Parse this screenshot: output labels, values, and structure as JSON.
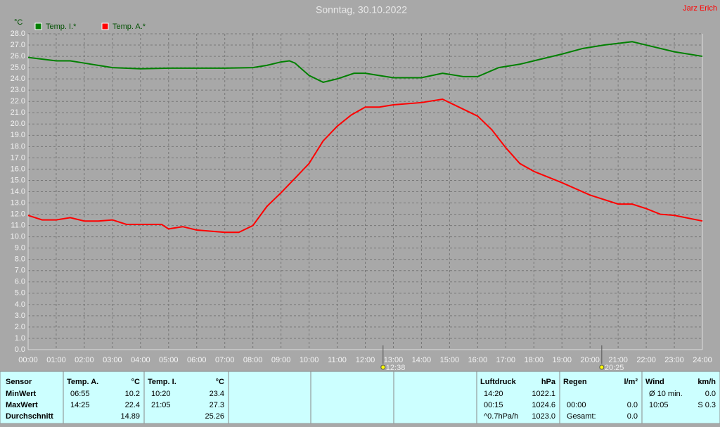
{
  "chart_data": {
    "type": "line",
    "title": "Sonntag, 30.10.2022",
    "author": "Jarz Erich",
    "y_label": "°C",
    "xlim": [
      0,
      24
    ],
    "ylim": [
      0,
      28
    ],
    "grid": true,
    "xticks": [
      {
        "value": 0,
        "label": "00:00"
      },
      {
        "value": 1,
        "label": "01:00"
      },
      {
        "value": 2,
        "label": "02:00"
      },
      {
        "value": 3,
        "label": "03:00"
      },
      {
        "value": 4,
        "label": "04:00"
      },
      {
        "value": 5,
        "label": "05:00"
      },
      {
        "value": 6,
        "label": "06:00"
      },
      {
        "value": 7,
        "label": "07:00"
      },
      {
        "value": 8,
        "label": "08:00"
      },
      {
        "value": 9,
        "label": "09:00"
      },
      {
        "value": 10,
        "label": "10:00"
      },
      {
        "value": 11,
        "label": "11:00"
      },
      {
        "value": 12,
        "label": "12:00"
      },
      {
        "value": 13,
        "label": "13:00"
      },
      {
        "value": 14,
        "label": "14:00"
      },
      {
        "value": 15,
        "label": "15:00"
      },
      {
        "value": 16,
        "label": "16:00"
      },
      {
        "value": 17,
        "label": "17:00"
      },
      {
        "value": 18,
        "label": "18:00"
      },
      {
        "value": 19,
        "label": "19:00"
      },
      {
        "value": 20,
        "label": "20:00"
      },
      {
        "value": 21,
        "label": "21:00"
      },
      {
        "value": 22,
        "label": "22:00"
      },
      {
        "value": 23,
        "label": "23:00"
      },
      {
        "value": 24,
        "label": "24:00"
      }
    ],
    "yticks": [
      {
        "value": 0,
        "label": "0.0"
      },
      {
        "value": 1,
        "label": "1.0"
      },
      {
        "value": 2,
        "label": "2.0"
      },
      {
        "value": 3,
        "label": "3.0"
      },
      {
        "value": 4,
        "label": "4.0"
      },
      {
        "value": 5,
        "label": "5.0"
      },
      {
        "value": 6,
        "label": "6.0"
      },
      {
        "value": 7,
        "label": "7.0"
      },
      {
        "value": 8,
        "label": "8.0"
      },
      {
        "value": 9,
        "label": "9.0"
      },
      {
        "value": 10,
        "label": "10.0"
      },
      {
        "value": 11,
        "label": "11.0"
      },
      {
        "value": 12,
        "label": "12.0"
      },
      {
        "value": 13,
        "label": "13.0"
      },
      {
        "value": 14,
        "label": "14.0"
      },
      {
        "value": 15,
        "label": "15.0"
      },
      {
        "value": 16,
        "label": "16.0"
      },
      {
        "value": 17,
        "label": "17.0"
      },
      {
        "value": 18,
        "label": "18.0"
      },
      {
        "value": 19,
        "label": "19.0"
      },
      {
        "value": 20,
        "label": "20.0"
      },
      {
        "value": 21,
        "label": "21.0"
      },
      {
        "value": 22,
        "label": "22.0"
      },
      {
        "value": 23,
        "label": "23.0"
      },
      {
        "value": 24,
        "label": "24.0"
      },
      {
        "value": 25,
        "label": "25.0"
      },
      {
        "value": 26,
        "label": "26.0"
      },
      {
        "value": 27,
        "label": "27.0"
      },
      {
        "value": 28,
        "label": "28.0"
      }
    ],
    "series": [
      {
        "name": "Temp. I.*",
        "color": "#008000",
        "x": [
          0,
          1,
          1.5,
          2,
          3,
          4,
          5,
          6,
          7,
          8,
          8.5,
          9,
          9.3,
          9.5,
          10,
          10.5,
          11,
          11.6,
          12,
          12.5,
          13,
          14,
          14.75,
          15.5,
          16,
          16.75,
          17.5,
          18,
          19,
          19.75,
          20.5,
          21.5,
          22,
          23,
          24
        ],
        "values": [
          25.9,
          25.6,
          25.6,
          25.4,
          25.0,
          24.9,
          24.95,
          24.95,
          24.95,
          25.0,
          25.2,
          25.5,
          25.6,
          25.4,
          24.3,
          23.7,
          24.0,
          24.5,
          24.5,
          24.3,
          24.1,
          24.1,
          24.5,
          24.2,
          24.2,
          25.0,
          25.3,
          25.6,
          26.2,
          26.7,
          27.0,
          27.3,
          27.0,
          26.4,
          26.0
        ]
      },
      {
        "name": "Temp. A.*",
        "color": "#ff0000",
        "x": [
          0,
          0.5,
          1,
          1.5,
          2,
          2.5,
          3,
          3.5,
          4,
          4.75,
          5,
          5.5,
          6,
          7,
          7.5,
          8,
          8.5,
          9,
          9.5,
          10,
          10.5,
          11,
          11.5,
          12,
          12.5,
          13,
          14,
          14.75,
          15.5,
          16,
          16.5,
          17,
          17.5,
          18,
          19,
          20,
          21,
          21.5,
          22,
          22.5,
          23,
          24
        ],
        "values": [
          11.9,
          11.5,
          11.5,
          11.7,
          11.4,
          11.4,
          11.5,
          11.1,
          11.1,
          11.1,
          10.7,
          10.9,
          10.6,
          10.4,
          10.4,
          11.0,
          12.7,
          13.9,
          15.2,
          16.5,
          18.5,
          19.8,
          20.8,
          21.5,
          21.5,
          21.7,
          21.9,
          22.2,
          21.3,
          20.7,
          19.5,
          17.9,
          16.5,
          15.8,
          14.8,
          13.7,
          12.9,
          12.9,
          12.5,
          12.0,
          11.9,
          11.4
        ]
      }
    ],
    "annotations": [
      {
        "x": 12.633,
        "label": "12:38"
      },
      {
        "x": 20.417,
        "label": "20:25"
      }
    ]
  },
  "table": {
    "sensor": [
      "Sensor",
      "MinWert",
      "MaxWert",
      "Durchschnitt"
    ],
    "panels": [
      {
        "header": [
          "Temp. A.",
          "°C"
        ],
        "rows": [
          [
            "06:55",
            "10.2"
          ],
          [
            "14:25",
            "22.4"
          ],
          [
            "14.89"
          ]
        ]
      },
      {
        "header": [
          "Temp. I.",
          "°C"
        ],
        "rows": [
          [
            "10:20",
            "23.4"
          ],
          [
            "21:05",
            "27.3"
          ],
          [
            "25.26"
          ]
        ]
      },
      {
        "header": [
          "Luftdruck",
          "hPa"
        ],
        "rows": [
          [
            "14:20",
            "1022.1"
          ],
          [
            "00:15",
            "1024.6"
          ],
          [
            "^0.7hPa/h",
            "1023.0"
          ]
        ]
      },
      {
        "header": [
          "Regen",
          "l/m²"
        ],
        "rows": [
          [],
          [
            "00:00",
            "0.0"
          ],
          [
            "Gesamt:",
            "0.0"
          ]
        ]
      },
      {
        "header": [
          "Wind",
          "km/h"
        ],
        "rows": [
          [
            "Ø 10 min.",
            "0.0"
          ],
          [
            "10:05",
            "S 0.3"
          ],
          []
        ]
      }
    ]
  }
}
